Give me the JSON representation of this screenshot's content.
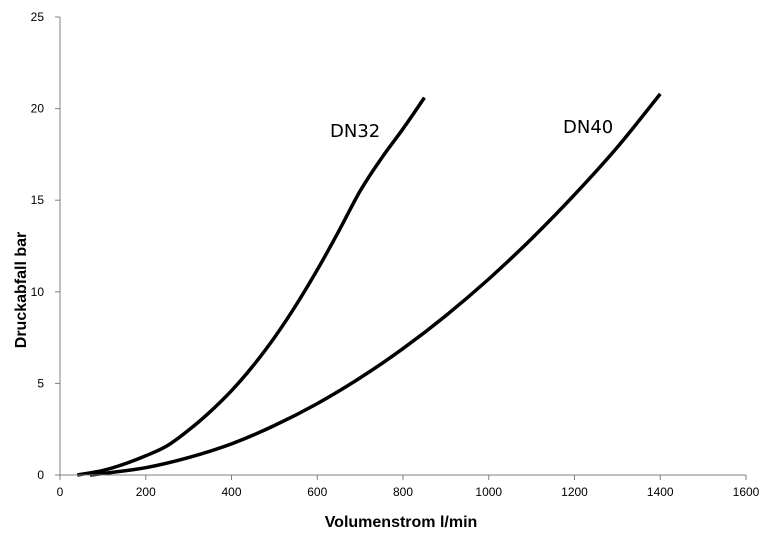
{
  "chart_data": {
    "type": "line",
    "title": "",
    "xlabel": "Volumenstrom l/min",
    "ylabel": "Druckabfall bar",
    "xlim": [
      0,
      1600
    ],
    "ylim": [
      0,
      25
    ],
    "x_ticks": [
      0,
      200,
      400,
      600,
      800,
      1000,
      1200,
      1400,
      1600
    ],
    "y_ticks": [
      0,
      5,
      10,
      15,
      20,
      25
    ],
    "grid": false,
    "legend": "none",
    "series": [
      {
        "name": "DN32",
        "x": [
          40,
          100,
          150,
          200,
          250,
          300,
          350,
          400,
          450,
          500,
          550,
          600,
          650,
          700,
          750,
          800,
          850
        ],
        "y": [
          0.0,
          0.25,
          0.6,
          1.05,
          1.6,
          2.45,
          3.45,
          4.6,
          5.95,
          7.5,
          9.25,
          11.2,
          13.3,
          15.5,
          17.3,
          18.9,
          20.6
        ]
      },
      {
        "name": "DN40",
        "x": [
          70,
          100,
          200,
          300,
          400,
          500,
          600,
          700,
          800,
          900,
          1000,
          1100,
          1200,
          1300,
          1400
        ],
        "y": [
          0.0,
          0.08,
          0.4,
          0.95,
          1.7,
          2.7,
          3.9,
          5.3,
          6.9,
          8.7,
          10.7,
          12.9,
          15.3,
          17.9,
          20.8
        ]
      }
    ]
  }
}
